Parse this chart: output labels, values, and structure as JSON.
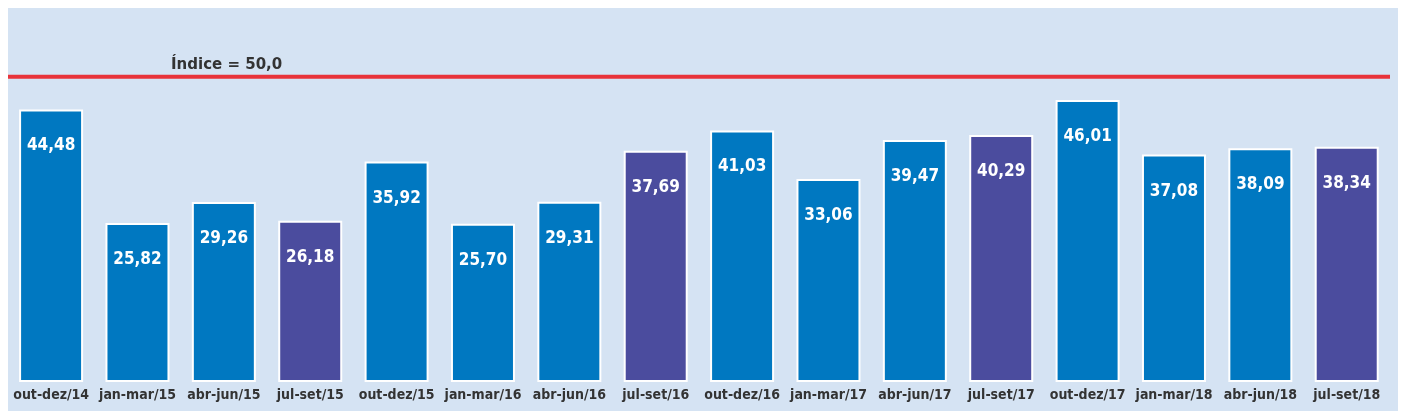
{
  "chart_data": {
    "type": "bar",
    "categories": [
      "out-dez/14",
      "jan-mar/15",
      "abr-jun/15",
      "jul-set/15",
      "out-dez/15",
      "jan-mar/16",
      "abr-jun/16",
      "jul-set/16",
      "out-dez/16",
      "jan-mar/17",
      "abr-jun/17",
      "jul-set/17",
      "out-dez/17",
      "jan-mar/18",
      "abr-jun/18",
      "jul-set/18"
    ],
    "values": [
      44.48,
      25.82,
      29.26,
      26.18,
      35.92,
      25.7,
      29.31,
      37.69,
      41.03,
      33.06,
      39.47,
      40.29,
      46.01,
      37.08,
      38.09,
      38.34
    ],
    "value_labels": [
      "44,48",
      "25,82",
      "29,26",
      "26,18",
      "35,92",
      "25,70",
      "29,31",
      "37,69",
      "41,03",
      "33,06",
      "39,47",
      "40,29",
      "46,01",
      "37,08",
      "38,09",
      "38,34"
    ],
    "colors": [
      "#0078c1",
      "#0078c1",
      "#0078c1",
      "#4b4c9e",
      "#0078c1",
      "#0078c1",
      "#0078c1",
      "#4b4c9e",
      "#0078c1",
      "#0078c1",
      "#0078c1",
      "#4b4c9e",
      "#0078c1",
      "#0078c1",
      "#0078c1",
      "#4b4c9e"
    ],
    "tick_labels": "x",
    "ref_lines": [
      {
        "axis": "y",
        "value": 50,
        "label": "Índice = 50,0",
        "color": "#e8333a"
      }
    ]
  }
}
